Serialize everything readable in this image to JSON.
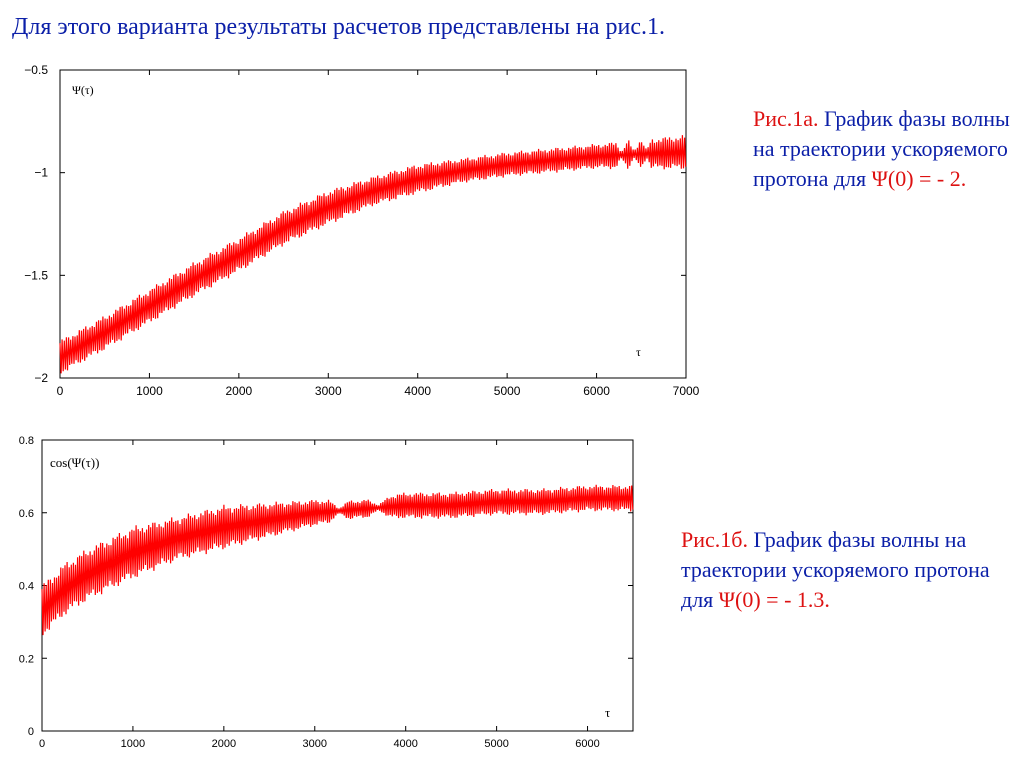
{
  "slide": {
    "title": "Для этого варианта результаты расчетов представлены на рис.1."
  },
  "caption_a": {
    "part1": "Рис.1а.",
    "part2": " График фазы волны на траектории ускоряемого протона для ",
    "part3": "Ψ(0) = - 2."
  },
  "caption_b": {
    "part1": "Рис.1б.",
    "part2": " График фазы волны на траектории ускоряемого протона для ",
    "part3": "Ψ(0) = - 1.3."
  },
  "colors": {
    "text": "#0b1fa8",
    "accent": "#dd1111",
    "trace": "#ff0000"
  },
  "chart_data": [
    {
      "type": "line",
      "ylabel": "Ψ(τ)",
      "xlabel": "τ",
      "xlim": [
        0,
        7000
      ],
      "ylim": [
        -2,
        -0.5
      ],
      "xticks": [
        "0",
        "1000",
        "2000",
        "3000",
        "4000",
        "5000",
        "6000",
        "7000"
      ],
      "yticks": [
        "−0.5",
        "−1",
        "−1.5",
        "−2"
      ],
      "xtick_values": [
        0,
        1000,
        2000,
        3000,
        4000,
        5000,
        6000,
        7000
      ],
      "ytick_values": [
        -0.5,
        -1,
        -1.5,
        -2
      ],
      "series": [
        {
          "x": [
            0,
            500,
            1000,
            1500,
            2000,
            2500,
            3000,
            3500,
            4000,
            4500,
            5000,
            5500,
            6000,
            6500,
            7000
          ],
          "center": [
            -1.9,
            -1.78,
            -1.65,
            -1.52,
            -1.4,
            -1.27,
            -1.17,
            -1.09,
            -1.03,
            -0.99,
            -0.96,
            -0.94,
            -0.92,
            -0.91,
            -0.9
          ],
          "half_amplitude": [
            0.07,
            0.07,
            0.07,
            0.07,
            0.07,
            0.07,
            0.07,
            0.06,
            0.06,
            0.05,
            0.05,
            0.05,
            0.05,
            0.06,
            0.07
          ]
        }
      ]
    },
    {
      "type": "line",
      "ylabel": "cos(Ψ(τ))",
      "xlabel": "τ",
      "xlim": [
        0,
        6500
      ],
      "ylim": [
        0,
        0.8
      ],
      "xticks": [
        "0",
        "1000",
        "2000",
        "3000",
        "4000",
        "5000",
        "6000"
      ],
      "yticks": [
        "0.8",
        "0.6",
        "0.4",
        "0.2",
        "0"
      ],
      "xtick_values": [
        0,
        1000,
        2000,
        3000,
        4000,
        5000,
        6000
      ],
      "ytick_values": [
        0.8,
        0.6,
        0.4,
        0.2,
        0
      ],
      "series": [
        {
          "x": [
            0,
            250,
            500,
            1000,
            1500,
            2000,
            2500,
            3000,
            3500,
            4000,
            4500,
            5000,
            5500,
            6000,
            6500
          ],
          "center": [
            0.33,
            0.39,
            0.43,
            0.49,
            0.53,
            0.56,
            0.58,
            0.6,
            0.61,
            0.62,
            0.62,
            0.63,
            0.63,
            0.64,
            0.64
          ],
          "half_amplitude": [
            0.06,
            0.06,
            0.06,
            0.06,
            0.05,
            0.05,
            0.04,
            0.03,
            0.02,
            0.03,
            0.03,
            0.03,
            0.03,
            0.03,
            0.03
          ]
        }
      ]
    }
  ]
}
